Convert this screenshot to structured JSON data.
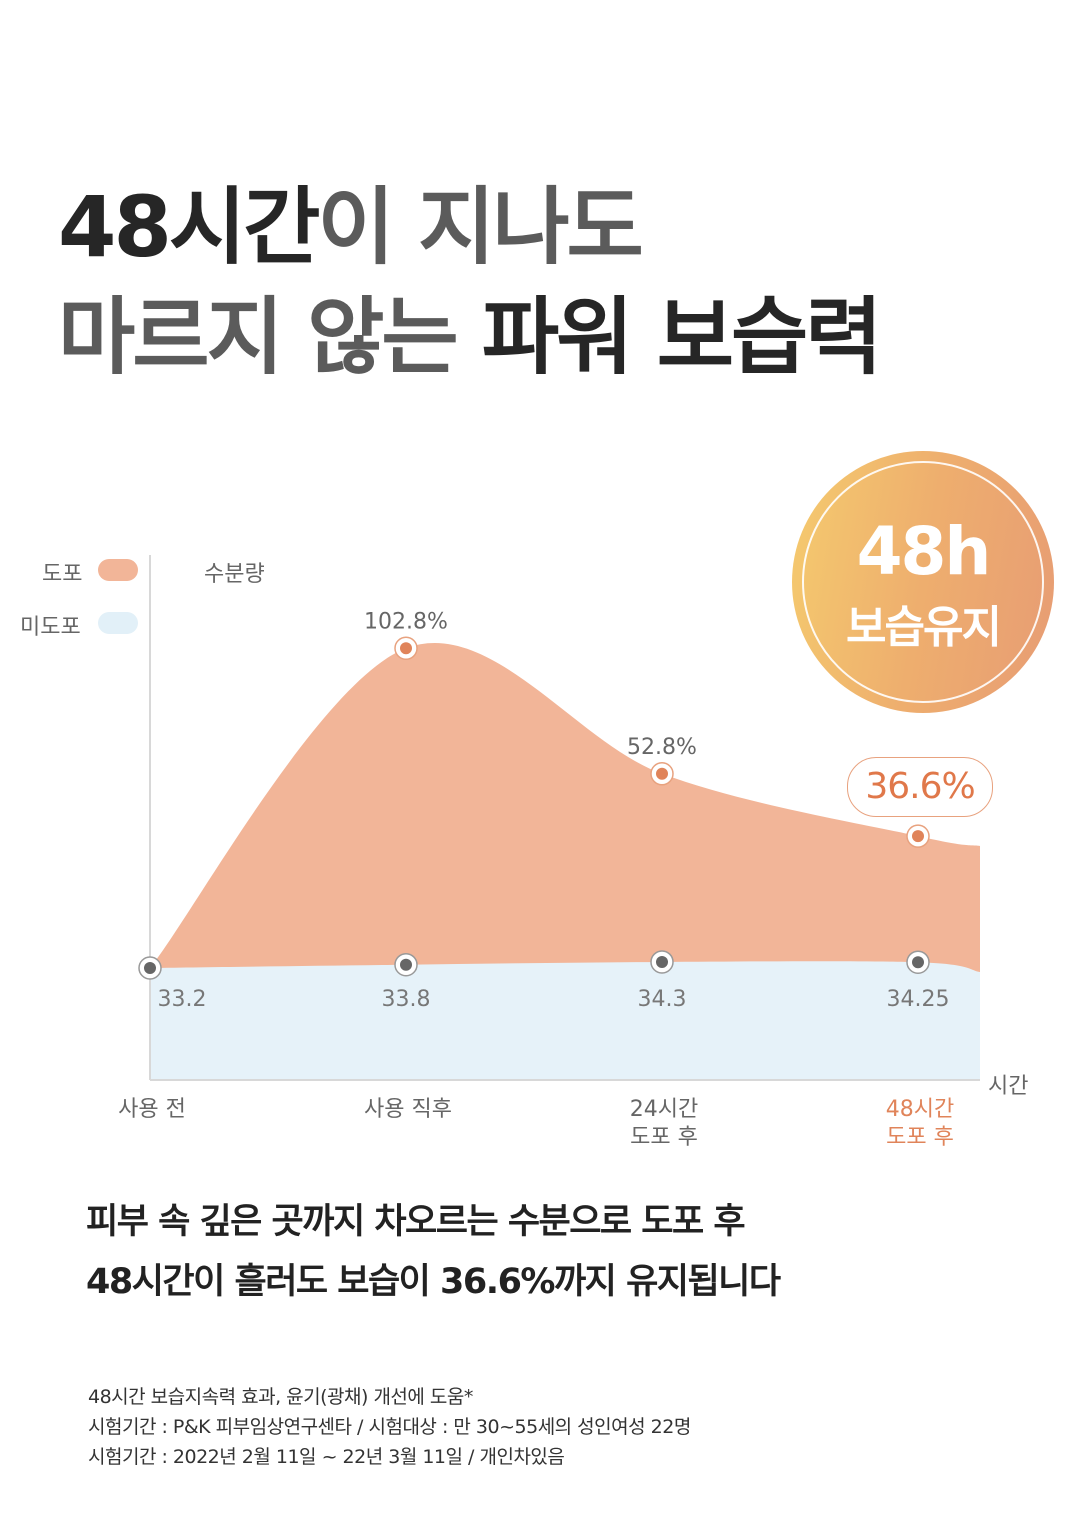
{
  "headline": {
    "line1_strong": "48시간",
    "line1_rest": "이 지나도",
    "line2_light": "마르지 않는",
    "line2_strong": "파워 보습력"
  },
  "badge": {
    "big": "48h",
    "small": "보습유지",
    "colors": [
      "#f5cb6e",
      "#e79c74"
    ]
  },
  "chart_data": {
    "type": "area",
    "ylabel": "수분량",
    "xlabel": "시간",
    "categories": [
      "사용 전",
      "사용 직후",
      "24시간\n도포 후",
      "48시간\n도포 후"
    ],
    "highlight_category": "48시간\n도포 후",
    "series": [
      {
        "name": "도포",
        "color": "#f2b598",
        "increase_pct": [
          null,
          102.8,
          52.8,
          36.6
        ],
        "labels": [
          "",
          "102.8%",
          "52.8%",
          "36.6%"
        ]
      },
      {
        "name": "미도포",
        "color": "#e6f2f9",
        "values": [
          33.2,
          33.8,
          34.3,
          34.25
        ],
        "labels": [
          "33.2",
          "33.8",
          "34.3",
          "34.25"
        ]
      }
    ],
    "legend_position": "top-left",
    "grid": false
  },
  "description": {
    "line1": "피부 속 깊은 곳까지 차오르는 수분으로 도포 후",
    "line2": "48시간이 흘러도 보습이 36.6%까지 유지됩니다"
  },
  "notes": [
    "48시간 보습지속력 효과, 윤기(광채) 개선에 도움*",
    "시험기간 : P&K 피부임상연구센타 / 시험대상 : 만 30~55세의 성인여성 22명",
    "시험기간 : 2022년 2월 11일 ~ 22년 3월 11일 / 개인차있음"
  ]
}
